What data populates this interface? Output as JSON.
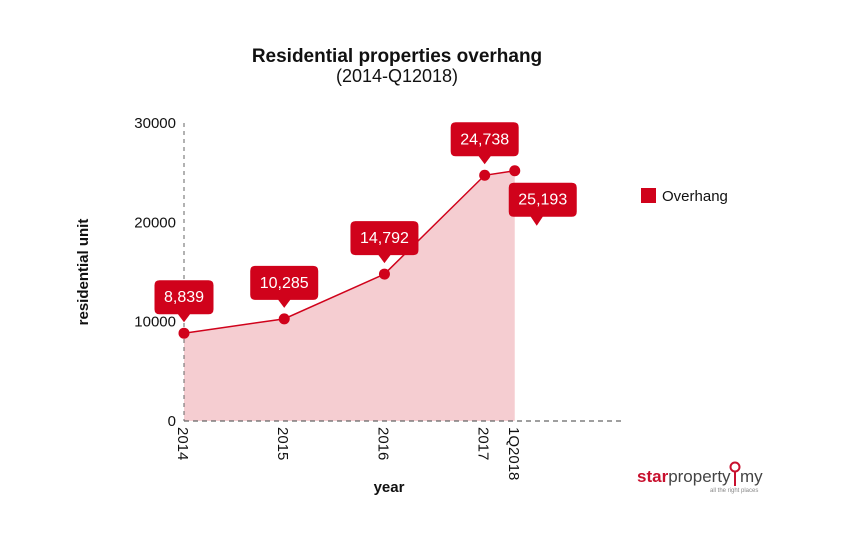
{
  "colors": {
    "series": "#d0021b",
    "area": "#f5cdd1",
    "axis": "#666666",
    "brand": "#c8102e"
  },
  "brand": {
    "name_part1": "star",
    "name_part2": "property",
    "name_part3": "my",
    "tagline": "all the right places"
  },
  "chart_data": {
    "type": "area",
    "title": "Residential properties overhang",
    "subtitle": "(2014-Q12018)",
    "xlabel": "year",
    "ylabel": "residential unit",
    "categories": [
      "2014",
      "2015",
      "2016",
      "2017",
      "1Q2018"
    ],
    "x_positions": [
      2014,
      2015,
      2016,
      2017,
      2017.3
    ],
    "x_range": [
      2014,
      2018.4
    ],
    "ylim": [
      0,
      30000
    ],
    "yticks": [
      0,
      10000,
      20000,
      30000
    ],
    "legend_position": "right",
    "series": [
      {
        "name": "Overhang",
        "values": [
          8839,
          10285,
          14792,
          24738,
          25193
        ],
        "labels": [
          "8,839",
          "10,285",
          "14,792",
          "24,738",
          "25,193"
        ]
      }
    ]
  }
}
